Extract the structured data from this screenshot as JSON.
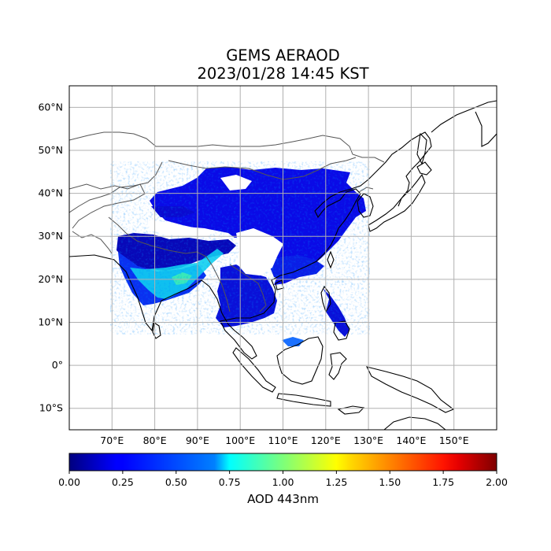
{
  "title": {
    "line1": "GEMS AERAOD",
    "line2": "2023/01/28 14:45 KST"
  },
  "map": {
    "lon_range": [
      60,
      160
    ],
    "lat_range": [
      -15,
      65
    ],
    "lon_ticks": [
      {
        "value": 70,
        "label": "70°E"
      },
      {
        "value": 80,
        "label": "80°E"
      },
      {
        "value": 90,
        "label": "90°E"
      },
      {
        "value": 100,
        "label": "100°E"
      },
      {
        "value": 110,
        "label": "110°E"
      },
      {
        "value": 120,
        "label": "120°E"
      },
      {
        "value": 130,
        "label": "130°E"
      },
      {
        "value": 140,
        "label": "140°E"
      },
      {
        "value": 150,
        "label": "150°E"
      }
    ],
    "lat_ticks": [
      {
        "value": 60,
        "label": "60°N"
      },
      {
        "value": 50,
        "label": "50°N"
      },
      {
        "value": 40,
        "label": "40°N"
      },
      {
        "value": 30,
        "label": "30°N"
      },
      {
        "value": 20,
        "label": "20°N"
      },
      {
        "value": 10,
        "label": "10°N"
      },
      {
        "value": 0,
        "label": "0°"
      },
      {
        "value": -10,
        "label": "10°S"
      }
    ],
    "grid": true
  },
  "colorbar": {
    "label": "AOD 443nm",
    "range": [
      0,
      2
    ],
    "colormap": "jet",
    "ticks": [
      {
        "value": 0.0,
        "label": "0.00"
      },
      {
        "value": 0.25,
        "label": "0.25"
      },
      {
        "value": 0.5,
        "label": "0.50"
      },
      {
        "value": 0.75,
        "label": "0.75"
      },
      {
        "value": 1.0,
        "label": "1.00"
      },
      {
        "value": 1.25,
        "label": "1.25"
      },
      {
        "value": 1.5,
        "label": "1.50"
      },
      {
        "value": 1.75,
        "label": "1.75"
      },
      {
        "value": 2.0,
        "label": "2.00"
      }
    ]
  },
  "colors": {
    "aod_low": "#00008f",
    "aod_mid": "#0000ff",
    "aod_high": "#00ffff",
    "coastline": "#000000",
    "border": "#555555",
    "grid": "#b0b0b0"
  }
}
